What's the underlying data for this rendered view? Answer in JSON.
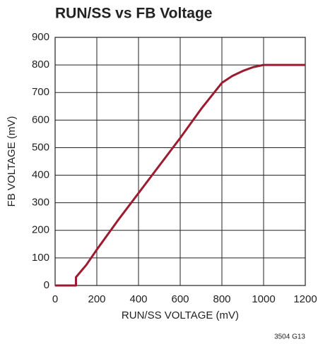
{
  "chart_data": {
    "type": "line",
    "title": "RUN/SS vs FB Voltage",
    "xlabel": "RUN/SS VOLTAGE (mV)",
    "ylabel": "FB VOLTAGE (mV)",
    "annotation": "3504 G13",
    "x": [
      0,
      100,
      100,
      150,
      200,
      300,
      400,
      500,
      600,
      700,
      800,
      850,
      900,
      950,
      1000,
      1200
    ],
    "series": [
      {
        "color": "#9b1b30",
        "values": [
          0,
          0,
          30,
          75,
          130,
          235,
          335,
          435,
          535,
          640,
          735,
          760,
          778,
          792,
          800,
          800
        ]
      }
    ],
    "xlim": [
      0,
      1200
    ],
    "xticks": [
      0,
      200,
      400,
      600,
      800,
      1000,
      1200
    ],
    "ylim": [
      0,
      900
    ],
    "yticks": [
      0,
      100,
      200,
      300,
      400,
      500,
      600,
      700,
      800,
      900
    ],
    "grid": true
  }
}
